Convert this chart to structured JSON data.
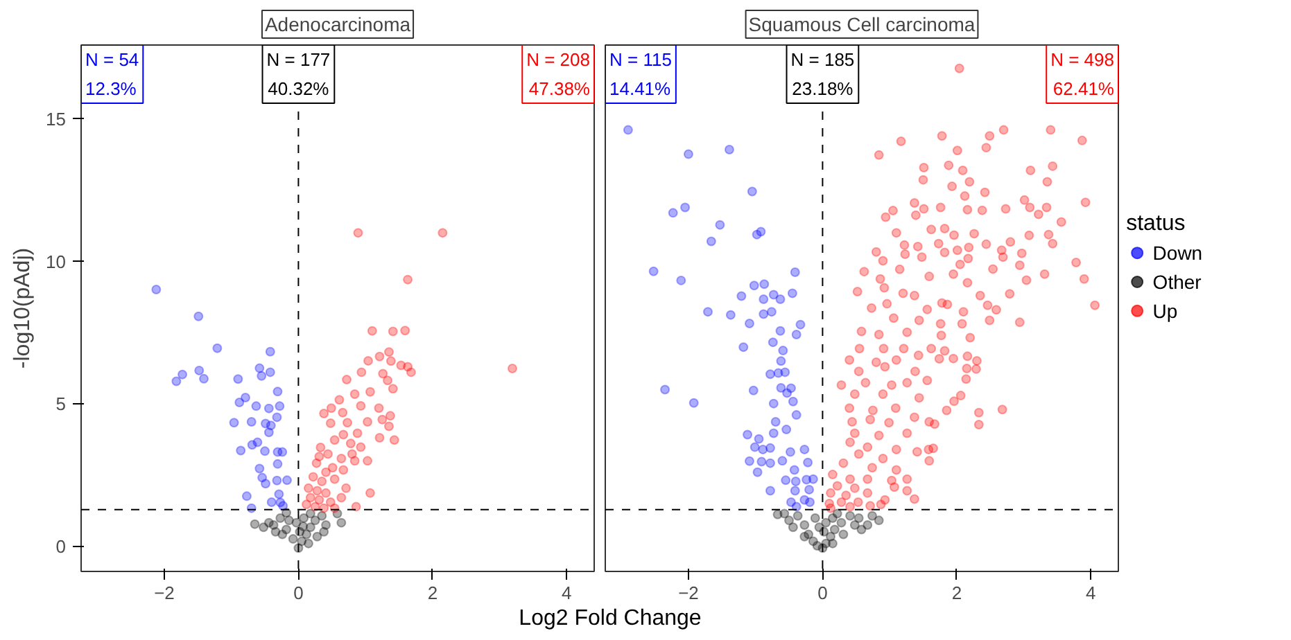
{
  "chart_data": [
    {
      "type": "scatter",
      "title": "Adenocarcinoma",
      "xlabel": "Log2 Fold Change",
      "ylabel": "-log10(pAdj)",
      "xlim": [
        -3.24,
        4.41
      ],
      "ylim": [
        -0.87,
        17.6
      ],
      "xticks": [
        -2,
        0,
        2,
        4
      ],
      "yticks": [
        0,
        5,
        10,
        15
      ],
      "grid": false,
      "marker": "circle",
      "legend": false,
      "ref_lines": [
        {
          "axis": "x",
          "value": 0,
          "line_style": "dashed"
        },
        {
          "axis": "y",
          "value": 1.3,
          "line_style": "dashed"
        }
      ],
      "annotations": [
        "N = 54\n12.3%",
        "N = 177\n40.32%",
        "N = 208\n47.38%"
      ],
      "series": [
        {
          "color": "#0000ff",
          "x": [
            -2.12,
            -1.49,
            -1.21,
            -1.73,
            -1.82,
            -1.48,
            -1.41,
            -0.42,
            -0.58,
            -0.42,
            -0.55,
            -0.9,
            -0.31,
            -0.79,
            -0.88,
            -0.63,
            -0.44,
            -0.28,
            -0.32,
            -0.96,
            -0.7,
            -0.49,
            -0.41,
            -0.44,
            -0.61,
            -0.69,
            -0.86,
            -0.5,
            -0.31,
            -0.24,
            -0.31,
            -0.58,
            -0.54,
            -0.49,
            -0.32,
            -0.17,
            -0.77,
            -0.29,
            -0.4,
            -0.27,
            -0.7,
            -0.23
          ],
          "values": [
            9.02,
            8.08,
            6.96,
            6.04,
            5.8,
            6.18,
            5.89,
            6.84,
            6.26,
            6.12,
            5.99,
            5.88,
            5.44,
            5.23,
            5.06,
            4.93,
            4.85,
            4.93,
            4.54,
            4.35,
            4.38,
            4.32,
            4.25,
            4.01,
            3.66,
            3.57,
            3.37,
            3.35,
            3.32,
            3.32,
            2.9,
            2.74,
            2.42,
            2.21,
            2.32,
            2.33,
            1.77,
            1.84,
            1.56,
            1.55,
            1.35,
            1.43
          ]
        },
        {
          "color": "#000000",
          "x": [
            -0.65,
            -0.52,
            -0.37,
            -0.27,
            -0.18,
            0,
            0.05,
            0.12,
            0.18,
            0.25,
            0.35,
            0.41,
            0.58,
            0.64,
            0.08,
            -0.14,
            -0.24,
            0.02,
            0.15,
            -0.08,
            0.28,
            -0.34,
            -0.44,
            0.18,
            -0.18,
            0.38,
            -0.03,
            0.07
          ],
          "values": [
            0.79,
            0.68,
            0.76,
            1.0,
            0.6,
            -0.05,
            0.19,
            0.43,
            0.68,
            0.92,
            1.08,
            0.76,
            1.16,
            0.84,
            1.0,
            0.92,
            0.43,
            0.52,
            0.11,
            0.27,
            0.35,
            0.52,
            0.84,
            1.16,
            1.19,
            0.52,
            0.84,
            0.71
          ]
        },
        {
          "color": "#ff0000",
          "x": [
            0.89,
            2.15,
            1.63,
            3.19,
            1.1,
            1.41,
            1.59,
            1.35,
            1.21,
            1.38,
            1.04,
            0.94,
            1.53,
            1.63,
            1.68,
            0.72,
            1.26,
            1.33,
            1.41,
            0.84,
            1.07,
            0.61,
            0.49,
            0.38,
            0.66,
            0.93,
            1.2,
            1.37,
            0.48,
            0.73,
            1.03,
            1.25,
            1.35,
            0.67,
            0.88,
            0.54,
            0.78,
            1.43,
            1.21,
            0.93,
            0.33,
            0.44,
            0.64,
            0.31,
            1.03,
            0.84,
            0.51,
            0.67,
            0.41,
            0.27,
            0.22,
            0.35,
            0.54,
            0.15,
            0.28,
            0.41,
            1.07,
            0.18,
            0.31,
            0.48,
            0.64,
            0.12,
            0.25,
            0.38,
            0.86,
            0.54,
            0.71,
            0.8
          ],
          "values": [
            11.01,
            11.01,
            9.37,
            6.25,
            7.57,
            7.55,
            7.58,
            6.83,
            6.67,
            6.51,
            6.52,
            6.12,
            6.36,
            6.31,
            6.12,
            5.86,
            6.07,
            5.83,
            5.54,
            5.35,
            5.43,
            5.15,
            4.86,
            4.67,
            4.7,
            4.94,
            4.86,
            4.59,
            4.33,
            4.35,
            4.38,
            4.46,
            4.22,
            3.93,
            3.98,
            3.74,
            3.62,
            3.74,
            3.82,
            3.49,
            3.48,
            3.25,
            3.09,
            3.16,
            3.01,
            3.01,
            2.77,
            2.69,
            2.61,
            2.93,
            2.45,
            2.29,
            2.37,
            2.05,
            1.96,
            1.88,
            1.88,
            1.72,
            1.64,
            1.56,
            1.72,
            1.48,
            1.4,
            1.35,
            1.4,
            1.35,
            2.05,
            3.25
          ]
        }
      ]
    },
    {
      "type": "scatter",
      "title": "Squamous Cell carcinoma",
      "legend_title": "status",
      "xlim": [
        -3.24,
        4.41
      ],
      "ylim": [
        -0.87,
        17.6
      ],
      "xticks": [
        -2,
        0,
        2,
        4
      ],
      "yticks": [
        0,
        5,
        10,
        15
      ],
      "grid": false,
      "marker": "circle",
      "legend": "right",
      "tick_labels": "x",
      "ref_lines": [
        {
          "axis": "x",
          "value": 0,
          "line_style": "dashed"
        },
        {
          "axis": "y",
          "value": 1.3,
          "line_style": "dashed"
        }
      ],
      "annotations": [
        "N = 115\n14.41%",
        "N = 185\n23.18%",
        "N = 498\n62.41%"
      ],
      "series": [
        {
          "name": "Down",
          "color": "#0000ff",
          "x": [
            -2.9,
            -2.0,
            -1.39,
            -1.05,
            -2.23,
            -2.05,
            -1.53,
            -1.66,
            -0.98,
            -0.92,
            -2.52,
            -2.11,
            -0.41,
            -1.02,
            -0.87,
            -1.21,
            -0.73,
            -0.63,
            -0.45,
            -0.88,
            -1.71,
            -1.37,
            -0.88,
            -0.76,
            -1.09,
            -0.33,
            -0.63,
            -0.39,
            -0.74,
            -1.18,
            -0.59,
            -0.62,
            -0.78,
            -0.66,
            -0.56,
            -2.35,
            -1.92,
            -1.03,
            -0.62,
            -0.47,
            -0.53,
            -0.44,
            -0.39,
            -0.73,
            -0.7,
            -0.54,
            -1.12,
            -0.95,
            -0.73,
            -0.48,
            -1.01,
            -0.78,
            -0.89,
            -0.27,
            -1.09,
            -0.91,
            -0.6,
            -0.78,
            -0.22,
            -0.42,
            -0.97,
            -0.55,
            -0.4,
            -0.24,
            -0.14,
            -0.41,
            -0.2,
            -0.78,
            -0.47,
            -0.27,
            -0.19,
            -0.39
          ],
          "values": [
            14.62,
            13.77,
            13.93,
            12.46,
            11.71,
            11.9,
            11.29,
            10.71,
            10.95,
            11.05,
            9.66,
            9.34,
            9.63,
            9.16,
            9.21,
            8.79,
            8.84,
            8.68,
            8.89,
            8.68,
            8.24,
            8.13,
            8.16,
            8.24,
            7.83,
            7.79,
            7.57,
            7.44,
            7.17,
            7.0,
            6.88,
            6.51,
            6.05,
            6.09,
            6.12,
            5.51,
            5.04,
            5.48,
            5.57,
            5.56,
            5.39,
            5.09,
            4.62,
            5.02,
            4.38,
            4.11,
            3.93,
            3.78,
            3.98,
            3.32,
            3.49,
            3.46,
            3.41,
            3.41,
            3.0,
            2.98,
            3.01,
            2.93,
            2.95,
            2.69,
            2.61,
            2.33,
            2.29,
            2.35,
            2.37,
            1.96,
            2.0,
            1.96,
            1.56,
            1.64,
            1.56,
            1.4
          ]
        },
        {
          "name": "Other",
          "color": "#000000",
          "x": [
            -0.67,
            -0.5,
            -0.37,
            -0.44,
            -0.27,
            -0.21,
            -0.14,
            -0.08,
            0,
            0.05,
            0.12,
            0.18,
            0.28,
            0.41,
            0.54,
            0.67,
            0.84,
            0.74,
            0.58,
            0.31,
            0.05,
            -0.11,
            -0.27,
            0.22,
            0.02,
            -0.05,
            0.15,
            0.48,
            -0.57,
            0.15
          ],
          "values": [
            1.13,
            0.92,
            1.08,
            0.68,
            0.76,
            0.43,
            0.19,
            0.03,
            -0.05,
            0.11,
            0.35,
            0.6,
            0.84,
            1.08,
            1.0,
            0.76,
            0.92,
            1.08,
            0.6,
            0.43,
            0.84,
            1.0,
            0.35,
            1.16,
            0.52,
            0.68,
            0.11,
            0.76,
            1.16,
            1.0
          ]
        },
        {
          "name": "Up",
          "color": "#ff0000",
          "x": [
            2.04,
            3.4,
            2.7,
            1.78,
            1.17,
            2.49,
            3.87,
            0.84,
            2.01,
            2.44,
            1.51,
            1.88,
            2.09,
            3.43,
            3.1,
            1.5,
            2.19,
            1.93,
            3.35,
            2.42,
            2.12,
            1.37,
            3.92,
            1.76,
            1.05,
            1.51,
            2.16,
            2.38,
            2.73,
            3.01,
            3.09,
            3.34,
            0.94,
            1.39,
            3.22,
            3.56,
            1.1,
            1.62,
            1.82,
            1.96,
            2.26,
            3.08,
            3.37,
            0.8,
            1.22,
            1.42,
            1.73,
            2.01,
            2.18,
            2.44,
            2.8,
            3.43,
            1.23,
            1.48,
            1.82,
            2.67,
            2.69,
            2.97,
            0.9,
            2.17,
            1.15,
            2.05,
            2.54,
            2.94,
            3.78,
            3.31,
            0.62,
            0.86,
            1.59,
            1.95,
            2.16,
            3.9,
            3.04,
            0.52,
            0.92,
            1.2,
            1.37,
            1.78,
            2.35,
            2.79,
            4.06,
            0.73,
            0.96,
            1.56,
            1.86,
            2.46,
            2.1,
            2.59,
            1.06,
            1.44,
            1.76,
            2.49,
            2.94,
            0.58,
            0.84,
            1.26,
            2.08,
            1.77,
            2.2,
            0.55,
            0.91,
            1.21,
            1.62,
            1.82,
            1.43,
            0.4,
            0.8,
            1.1,
            1.74,
            1.95,
            2.16,
            2.3,
            0.54,
            0.93,
            1.38,
            2.29,
            2.15,
            0.28,
            0.64,
            1.03,
            1.26,
            1.56,
            2.14,
            0.48,
            0.9,
            1.44,
            2.06,
            1.96,
            0.4,
            0.75,
            1.09,
            1.85,
            2.33,
            2.68,
            0.44,
            0.71,
            0.99,
            1.37,
            1.59,
            1.67,
            2.33,
            0.48,
            0.84,
            1.26,
            0.41,
            0.67,
            1.1,
            1.58,
            1.65,
            1.41,
            0.54,
            0.9,
            1.59,
            0.31,
            0.74,
            1.1,
            0.15,
            0.41,
            0.67,
            1.03,
            1.26,
            0.22,
            0.48,
            1.07,
            1.26,
            0.12,
            0.35,
            0.67,
            0.28,
            0.53,
            0.93,
            1.37,
            0.1,
            0.87,
            0.12,
            0.41,
            0.71
          ],
          "values": [
            16.78,
            14.62,
            14.62,
            14.41,
            14.22,
            14.41,
            14.25,
            13.74,
            13.9,
            14.0,
            13.3,
            13.38,
            13.2,
            13.35,
            13.2,
            12.87,
            12.8,
            12.64,
            12.8,
            12.43,
            12.3,
            12.06,
            12.08,
            11.9,
            11.79,
            11.85,
            11.82,
            11.8,
            11.85,
            12.16,
            11.9,
            11.9,
            11.56,
            11.63,
            11.66,
            11.39,
            11.01,
            11.13,
            11.16,
            10.93,
            10.98,
            10.92,
            10.95,
            10.34,
            10.58,
            10.53,
            10.63,
            10.4,
            10.5,
            10.61,
            10.69,
            10.63,
            10.26,
            10.16,
            10.32,
            10.4,
            10.16,
            10.29,
            10.03,
            10.11,
            9.73,
            9.9,
            9.74,
            9.87,
            9.97,
            9.56,
            9.65,
            9.39,
            9.48,
            9.56,
            9.26,
            9.39,
            9.35,
            8.95,
            9.08,
            8.89,
            8.81,
            8.55,
            8.81,
            8.87,
            8.47,
            8.37,
            8.52,
            8.32,
            8.5,
            8.47,
            8.24,
            8.31,
            8.02,
            7.94,
            7.82,
            7.94,
            7.87,
            7.55,
            7.44,
            7.52,
            7.82,
            7.41,
            7.33,
            6.95,
            6.95,
            6.95,
            6.95,
            6.87,
            6.71,
            6.55,
            6.47,
            6.55,
            6.59,
            6.6,
            6.68,
            6.52,
            6.15,
            6.31,
            6.15,
            6.23,
            6.25,
            5.67,
            5.75,
            5.67,
            5.75,
            5.83,
            5.88,
            5.35,
            5.35,
            5.22,
            5.3,
            5.1,
            4.86,
            4.78,
            4.86,
            4.78,
            4.7,
            4.81,
            4.38,
            4.46,
            4.35,
            4.54,
            4.38,
            4.3,
            4.28,
            3.98,
            3.9,
            3.98,
            3.66,
            3.49,
            3.41,
            3.41,
            3.45,
            3.33,
            3.25,
            3.09,
            3.01,
            2.93,
            2.77,
            2.69,
            2.53,
            2.37,
            2.37,
            2.32,
            2.37,
            2.13,
            2.05,
            2.09,
            1.96,
            1.88,
            1.8,
            1.88,
            1.56,
            1.56,
            1.64,
            1.67,
            1.51,
            1.48,
            1.35,
            1.4,
            1.43
          ]
        }
      ]
    }
  ]
}
